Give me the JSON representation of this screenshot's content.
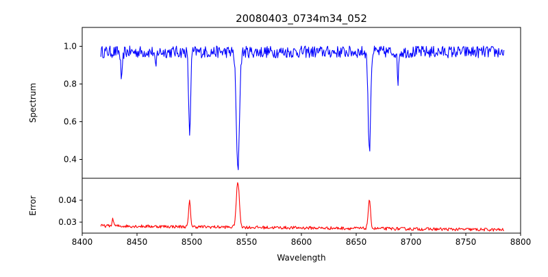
{
  "chart_data": [
    {
      "type": "line",
      "title": "20080403_0734m34_052",
      "xlabel": "",
      "ylabel": "Spectrum",
      "xlim": [
        8400,
        8800
      ],
      "ylim": [
        0.3,
        1.1
      ],
      "xticks": [],
      "yticks": [
        0.4,
        0.6,
        0.8,
        1.0
      ],
      "ytick_labels": [
        "0.4",
        "0.6",
        "0.8",
        "1.0"
      ],
      "grid": false,
      "series": [
        {
          "color": "#0000ff",
          "continuum": 0.97,
          "x_range": [
            8417,
            8785
          ],
          "noise_amplitude": 0.04,
          "lines": [
            {
              "x": 8436,
              "depth": 0.15,
              "width": 0.8
            },
            {
              "x": 8467,
              "depth": 0.09,
              "width": 0.7
            },
            {
              "x": 8498,
              "depth": 0.44,
              "width": 0.9
            },
            {
              "x": 8542,
              "depth": 0.63,
              "width": 1.4
            },
            {
              "x": 8662,
              "depth": 0.53,
              "width": 1.1
            },
            {
              "x": 8688,
              "depth": 0.16,
              "width": 0.6
            }
          ]
        }
      ]
    },
    {
      "type": "line",
      "title": "",
      "xlabel": "Wavelength",
      "ylabel": "Error",
      "xlim": [
        8400,
        8800
      ],
      "ylim": [
        0.025,
        0.05
      ],
      "xticks": [
        8400,
        8450,
        8500,
        8550,
        8600,
        8650,
        8700,
        8750,
        8800
      ],
      "xtick_labels": [
        "8400",
        "8450",
        "8500",
        "8550",
        "8600",
        "8650",
        "8700",
        "8750",
        "8800"
      ],
      "yticks": [
        0.03,
        0.04
      ],
      "ytick_labels": [
        "0.03",
        "0.04"
      ],
      "grid": false,
      "series": [
        {
          "color": "#ff0000",
          "baseline_start": 0.0283,
          "baseline_end": 0.0265,
          "x_range": [
            8417,
            8785
          ],
          "noise_amplitude": 0.0012,
          "lines": [
            {
              "x": 8428,
              "height": 0.003,
              "width": 0.8
            },
            {
              "x": 8498,
              "height": 0.0115,
              "width": 0.9
            },
            {
              "x": 8542,
              "height": 0.0205,
              "width": 1.4
            },
            {
              "x": 8662,
              "height": 0.0125,
              "width": 1.1
            }
          ]
        }
      ]
    }
  ]
}
